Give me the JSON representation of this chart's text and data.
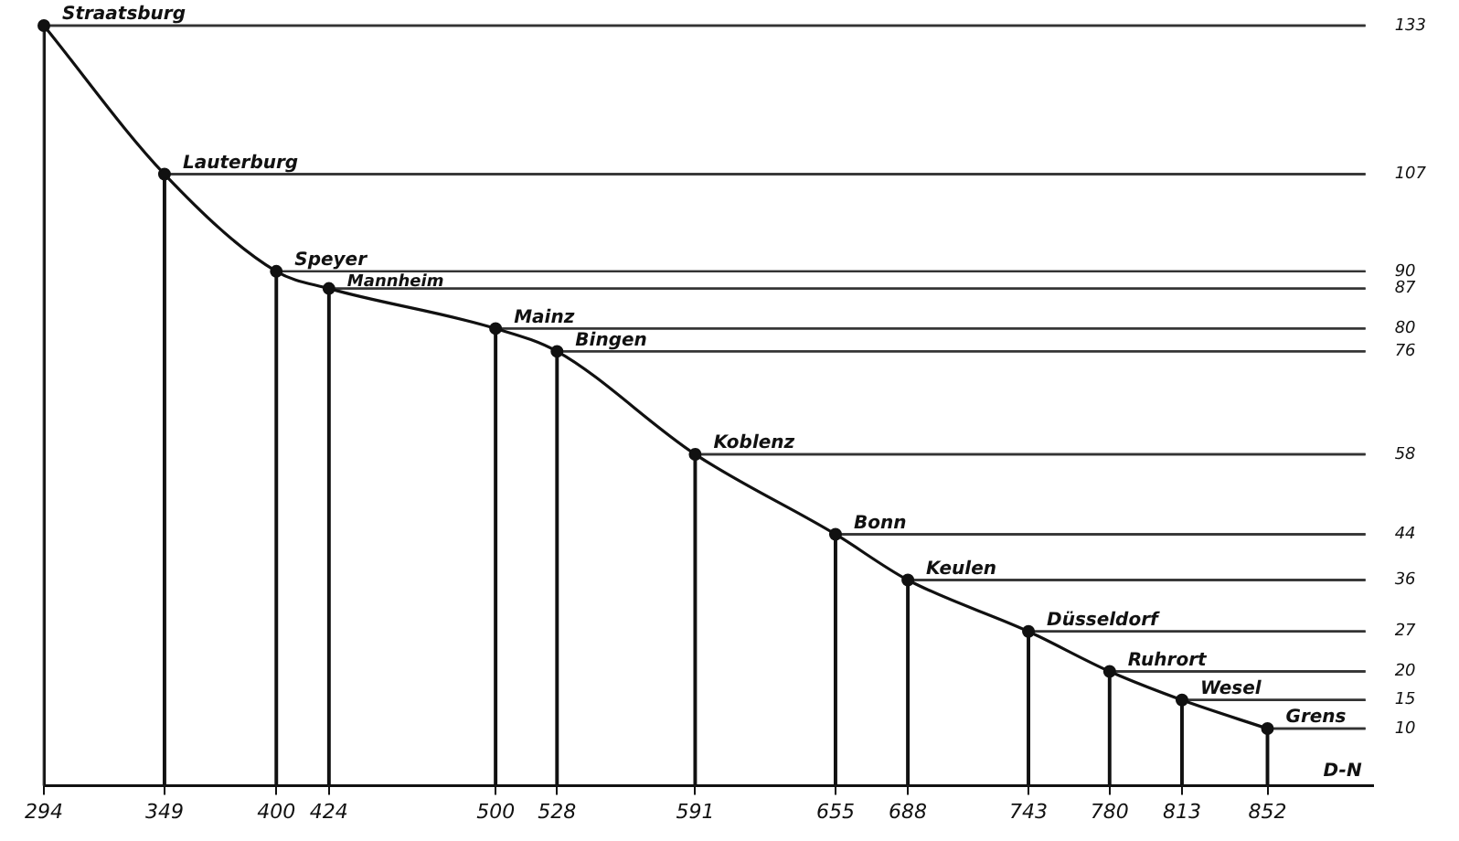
{
  "chart_data": {
    "type": "line",
    "x": [
      294,
      349,
      400,
      424,
      500,
      528,
      591,
      655,
      688,
      743,
      780,
      813,
      852
    ],
    "series": [
      {
        "color": "#111111",
        "values": [
          133,
          107,
          90,
          87,
          80,
          76,
          58,
          44,
          36,
          27,
          20,
          15,
          10
        ]
      },
      {
        "type": "lollipop",
        "color": "#111111",
        "values": [
          133,
          107,
          90,
          87,
          80,
          76,
          58,
          44,
          36,
          27,
          20,
          15,
          10
        ]
      }
    ],
    "xlim": [
      294,
      900
    ],
    "xticks": [
      294,
      349,
      400,
      424,
      500,
      528,
      591,
      655,
      688,
      743,
      780,
      813,
      852
    ],
    "ylim": [
      0,
      133
    ],
    "yticks": [
      133,
      107,
      90,
      87,
      80,
      76,
      58,
      44,
      36,
      27,
      20,
      15,
      10
    ],
    "grid": true,
    "line_style": "solid",
    "annotations": [
      {
        "text": "Straatsburg",
        "x": 294,
        "y": 133
      },
      {
        "text": "Lauterburg",
        "x": 349,
        "y": 107
      },
      {
        "text": "Speyer",
        "x": 400,
        "y": 90
      },
      {
        "text": "Mannheim",
        "x": 424,
        "y": 87
      },
      {
        "text": "Mainz",
        "x": 500,
        "y": 80
      },
      {
        "text": "Bingen",
        "x": 528,
        "y": 76
      },
      {
        "text": "Koblenz",
        "x": 591,
        "y": 58
      },
      {
        "text": "Bonn",
        "x": 655,
        "y": 44
      },
      {
        "text": "Keulen",
        "x": 688,
        "y": 36
      },
      {
        "text": "Düsseldorf",
        "x": 743,
        "y": 27
      },
      {
        "text": "Ruhrort",
        "x": 780,
        "y": 20
      },
      {
        "text": "Wesel",
        "x": 813,
        "y": 15
      },
      {
        "text": "Grens",
        "x": 852,
        "y": 10
      },
      "D-N"
    ]
  }
}
